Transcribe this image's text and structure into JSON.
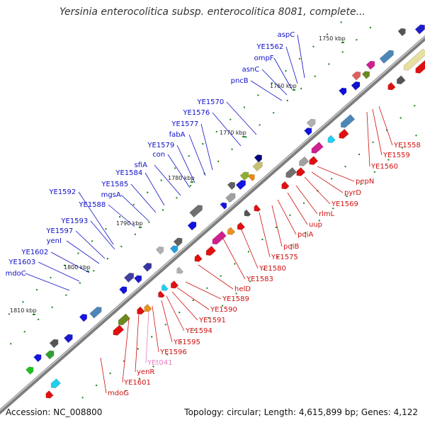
{
  "title": "Yersinia enterocolitica subsp. enterocolitica 8081, complete...",
  "footer": {
    "accession_label": "Accession:",
    "accession": "NC_008800",
    "topology_label": "Topology:",
    "topology": "circular;",
    "length_label": "Length:",
    "length": "4,615,899 bp;",
    "genes_label": "Genes:",
    "genes": "4,122"
  },
  "colors": {
    "backbone": "#888888",
    "forward_label": "#1010c8",
    "reverse_label": "#d01010",
    "rna_label": "#e080c0",
    "tick_mark": "#2a8a2a",
    "kbp_label": "#222222"
  },
  "kbp_ticks": [
    "1750 kbp",
    "1760 kbp",
    "1770 kbp",
    "1780 kbp",
    "1790 kbp",
    "1800 kbp",
    "1810 kbp"
  ],
  "forward_genes": [
    "aspC",
    "YE1562",
    "ompF",
    "asnC",
    "pncB",
    "YE1570",
    "YE1576",
    "YE1577",
    "fabA",
    "YE1579",
    "con",
    "sfiA",
    "YE1584",
    "YE1585",
    "mgsA",
    "YE1588",
    "YE1592",
    "YE1593",
    "YE1597",
    "yenI",
    "YE1602",
    "YE1603",
    "mdoC"
  ],
  "reverse_genes": [
    "YE1558",
    "YE1559",
    "YE1560",
    "pepN",
    "pyrD",
    "YE1569",
    "rlmL",
    "uup",
    "pqiA",
    "pqiB",
    "YE1575",
    "YE1580",
    "YE1583",
    "helD",
    "YE1589",
    "YE1590",
    "YE1591",
    "YE1594",
    "YE1595",
    "YE1596",
    "YEt041",
    "yenR",
    "YE1601",
    "mdoG"
  ],
  "rna_genes": [
    "YEt041"
  ]
}
